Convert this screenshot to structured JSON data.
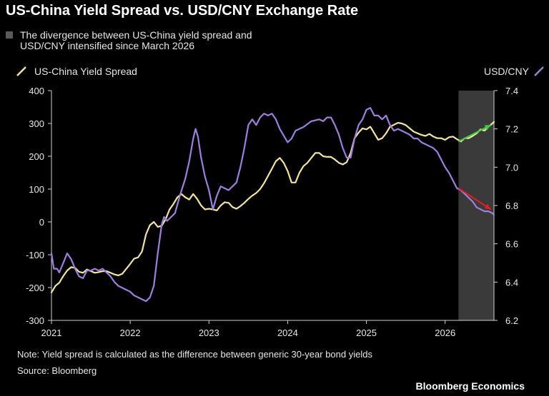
{
  "title": "US-China Yield Spread vs. USD/CNY Exchange Rate",
  "legend": {
    "shade_label": "The divergence between US-China yield spread and USD/CNY intensified since March 2026",
    "spread_label": "US-China Yield Spread",
    "usdcny_label": "USD/CNY"
  },
  "note": "Note: Yield spread is calculated as the difference between generic 30-year bond yields",
  "source": "Source: Bloomberg",
  "brand": "Bloomberg Economics",
  "colors": {
    "spread": "#f2e49a",
    "usdcny": "#a07ee0",
    "shade": "#3a3a3a",
    "arrow_up": "#3fcc44",
    "arrow_down": "#e02020"
  },
  "chart_data": {
    "type": "line",
    "x_ticks": [
      "2021",
      "2022",
      "2023",
      "2024",
      "2025",
      "2026"
    ],
    "x_range": [
      2021.0,
      2026.62
    ],
    "y_left": {
      "label": "",
      "ticks": [
        "400",
        "300",
        "200",
        "100",
        "0",
        "-100",
        "-200",
        "-300"
      ],
      "range": [
        -300,
        400
      ]
    },
    "y_right": {
      "label": "USD/CNY",
      "ticks": [
        "7.4",
        "7.2",
        "7.0",
        "6.8",
        "6.6",
        "6.4",
        "6.2"
      ],
      "range": [
        6.2,
        7.4
      ]
    },
    "shaded_region": [
      2026.17,
      2026.62
    ],
    "series": [
      {
        "name": "US-China Yield Spread",
        "axis": "left",
        "points": [
          [
            2021.0,
            -215
          ],
          [
            2021.05,
            -195
          ],
          [
            2021.1,
            -185
          ],
          [
            2021.15,
            -165
          ],
          [
            2021.2,
            -148
          ],
          [
            2021.25,
            -138
          ],
          [
            2021.3,
            -140
          ],
          [
            2021.35,
            -152
          ],
          [
            2021.4,
            -155
          ],
          [
            2021.45,
            -145
          ],
          [
            2021.5,
            -150
          ],
          [
            2021.55,
            -155
          ],
          [
            2021.6,
            -153
          ],
          [
            2021.65,
            -150
          ],
          [
            2021.7,
            -150
          ],
          [
            2021.75,
            -155
          ],
          [
            2021.8,
            -160
          ],
          [
            2021.85,
            -163
          ],
          [
            2021.9,
            -158
          ],
          [
            2021.95,
            -143
          ],
          [
            2022.0,
            -128
          ],
          [
            2022.05,
            -112
          ],
          [
            2022.1,
            -108
          ],
          [
            2022.15,
            -90
          ],
          [
            2022.2,
            -38
          ],
          [
            2022.25,
            -10
          ],
          [
            2022.3,
            0
          ],
          [
            2022.35,
            -15
          ],
          [
            2022.4,
            -12
          ],
          [
            2022.45,
            8
          ],
          [
            2022.5,
            38
          ],
          [
            2022.55,
            55
          ],
          [
            2022.6,
            75
          ],
          [
            2022.65,
            85
          ],
          [
            2022.7,
            75
          ],
          [
            2022.75,
            68
          ],
          [
            2022.8,
            85
          ],
          [
            2022.85,
            70
          ],
          [
            2022.9,
            50
          ],
          [
            2022.95,
            38
          ],
          [
            2023.0,
            40
          ],
          [
            2023.05,
            38
          ],
          [
            2023.1,
            35
          ],
          [
            2023.15,
            50
          ],
          [
            2023.2,
            60
          ],
          [
            2023.25,
            58
          ],
          [
            2023.3,
            45
          ],
          [
            2023.35,
            40
          ],
          [
            2023.4,
            48
          ],
          [
            2023.45,
            58
          ],
          [
            2023.5,
            70
          ],
          [
            2023.55,
            80
          ],
          [
            2023.6,
            88
          ],
          [
            2023.65,
            100
          ],
          [
            2023.7,
            118
          ],
          [
            2023.75,
            140
          ],
          [
            2023.8,
            162
          ],
          [
            2023.85,
            185
          ],
          [
            2023.9,
            195
          ],
          [
            2023.95,
            180
          ],
          [
            2024.0,
            155
          ],
          [
            2024.05,
            120
          ],
          [
            2024.1,
            120
          ],
          [
            2024.15,
            150
          ],
          [
            2024.2,
            170
          ],
          [
            2024.25,
            180
          ],
          [
            2024.3,
            195
          ],
          [
            2024.35,
            210
          ],
          [
            2024.4,
            210
          ],
          [
            2024.45,
            200
          ],
          [
            2024.5,
            198
          ],
          [
            2024.55,
            198
          ],
          [
            2024.6,
            190
          ],
          [
            2024.65,
            180
          ],
          [
            2024.7,
            175
          ],
          [
            2024.75,
            182
          ],
          [
            2024.8,
            210
          ],
          [
            2024.85,
            255
          ],
          [
            2024.9,
            272
          ],
          [
            2024.95,
            285
          ],
          [
            2025.0,
            282
          ],
          [
            2025.05,
            290
          ],
          [
            2025.1,
            270
          ],
          [
            2025.15,
            250
          ],
          [
            2025.2,
            255
          ],
          [
            2025.25,
            270
          ],
          [
            2025.3,
            290
          ],
          [
            2025.35,
            296
          ],
          [
            2025.4,
            302
          ],
          [
            2025.45,
            300
          ],
          [
            2025.5,
            295
          ],
          [
            2025.55,
            285
          ],
          [
            2025.6,
            275
          ],
          [
            2025.65,
            270
          ],
          [
            2025.7,
            265
          ],
          [
            2025.75,
            262
          ],
          [
            2025.8,
            268
          ],
          [
            2025.85,
            260
          ],
          [
            2025.9,
            255
          ],
          [
            2025.95,
            255
          ],
          [
            2026.0,
            250
          ],
          [
            2026.05,
            258
          ],
          [
            2026.1,
            260
          ],
          [
            2026.15,
            252
          ],
          [
            2026.2,
            245
          ],
          [
            2026.25,
            255
          ],
          [
            2026.3,
            255
          ],
          [
            2026.35,
            262
          ],
          [
            2026.4,
            270
          ],
          [
            2026.45,
            282
          ],
          [
            2026.5,
            278
          ],
          [
            2026.55,
            290
          ],
          [
            2026.6,
            300
          ],
          [
            2026.62,
            305
          ]
        ]
      },
      {
        "name": "USD/CNY",
        "axis": "right",
        "points": [
          [
            2021.0,
            6.55
          ],
          [
            2021.03,
            6.47
          ],
          [
            2021.07,
            6.47
          ],
          [
            2021.1,
            6.45
          ],
          [
            2021.15,
            6.5
          ],
          [
            2021.2,
            6.55
          ],
          [
            2021.25,
            6.52
          ],
          [
            2021.3,
            6.47
          ],
          [
            2021.35,
            6.43
          ],
          [
            2021.4,
            6.42
          ],
          [
            2021.45,
            6.46
          ],
          [
            2021.5,
            6.46
          ],
          [
            2021.55,
            6.47
          ],
          [
            2021.6,
            6.46
          ],
          [
            2021.65,
            6.47
          ],
          [
            2021.7,
            6.45
          ],
          [
            2021.75,
            6.43
          ],
          [
            2021.8,
            6.4
          ],
          [
            2021.85,
            6.38
          ],
          [
            2021.9,
            6.37
          ],
          [
            2021.95,
            6.36
          ],
          [
            2022.0,
            6.35
          ],
          [
            2022.05,
            6.33
          ],
          [
            2022.1,
            6.32
          ],
          [
            2022.15,
            6.31
          ],
          [
            2022.2,
            6.3
          ],
          [
            2022.25,
            6.32
          ],
          [
            2022.3,
            6.38
          ],
          [
            2022.35,
            6.55
          ],
          [
            2022.4,
            6.7
          ],
          [
            2022.43,
            6.74
          ],
          [
            2022.47,
            6.72
          ],
          [
            2022.52,
            6.74
          ],
          [
            2022.57,
            6.76
          ],
          [
            2022.63,
            6.85
          ],
          [
            2022.7,
            6.94
          ],
          [
            2022.75,
            7.03
          ],
          [
            2022.8,
            7.15
          ],
          [
            2022.83,
            7.2
          ],
          [
            2022.86,
            7.16
          ],
          [
            2022.9,
            7.05
          ],
          [
            2022.95,
            6.95
          ],
          [
            2023.0,
            6.88
          ],
          [
            2023.05,
            6.78
          ],
          [
            2023.1,
            6.85
          ],
          [
            2023.15,
            6.9
          ],
          [
            2023.2,
            6.89
          ],
          [
            2023.25,
            6.88
          ],
          [
            2023.3,
            6.9
          ],
          [
            2023.35,
            6.92
          ],
          [
            2023.4,
            7.0
          ],
          [
            2023.45,
            7.1
          ],
          [
            2023.5,
            7.22
          ],
          [
            2023.55,
            7.25
          ],
          [
            2023.6,
            7.22
          ],
          [
            2023.65,
            7.26
          ],
          [
            2023.7,
            7.28
          ],
          [
            2023.75,
            7.27
          ],
          [
            2023.8,
            7.28
          ],
          [
            2023.85,
            7.25
          ],
          [
            2023.9,
            7.2
          ],
          [
            2024.0,
            7.13
          ],
          [
            2024.05,
            7.15
          ],
          [
            2024.1,
            7.19
          ],
          [
            2024.2,
            7.21
          ],
          [
            2024.3,
            7.24
          ],
          [
            2024.4,
            7.25
          ],
          [
            2024.45,
            7.24
          ],
          [
            2024.5,
            7.26
          ],
          [
            2024.55,
            7.26
          ],
          [
            2024.6,
            7.22
          ],
          [
            2024.65,
            7.17
          ],
          [
            2024.7,
            7.1
          ],
          [
            2024.75,
            7.05
          ],
          [
            2024.8,
            7.05
          ],
          [
            2024.85,
            7.15
          ],
          [
            2024.9,
            7.22
          ],
          [
            2024.95,
            7.25
          ],
          [
            2025.0,
            7.3
          ],
          [
            2025.05,
            7.31
          ],
          [
            2025.1,
            7.27
          ],
          [
            2025.15,
            7.27
          ],
          [
            2025.2,
            7.25
          ],
          [
            2025.25,
            7.27
          ],
          [
            2025.3,
            7.22
          ],
          [
            2025.35,
            7.19
          ],
          [
            2025.4,
            7.2
          ],
          [
            2025.45,
            7.19
          ],
          [
            2025.5,
            7.18
          ],
          [
            2025.55,
            7.17
          ],
          [
            2025.6,
            7.15
          ],
          [
            2025.65,
            7.15
          ],
          [
            2025.7,
            7.13
          ],
          [
            2025.75,
            7.12
          ],
          [
            2025.8,
            7.11
          ],
          [
            2025.85,
            7.1
          ],
          [
            2025.9,
            7.08
          ],
          [
            2025.95,
            7.04
          ],
          [
            2026.0,
            7.0
          ],
          [
            2026.05,
            6.97
          ],
          [
            2026.1,
            6.93
          ],
          [
            2026.15,
            6.89
          ],
          [
            2026.2,
            6.88
          ],
          [
            2026.25,
            6.86
          ],
          [
            2026.3,
            6.84
          ],
          [
            2026.35,
            6.82
          ],
          [
            2026.4,
            6.79
          ],
          [
            2026.45,
            6.78
          ],
          [
            2026.5,
            6.77
          ],
          [
            2026.55,
            6.77
          ],
          [
            2026.6,
            6.76
          ],
          [
            2026.62,
            6.75
          ]
        ]
      }
    ],
    "annotations": [
      {
        "type": "arrow",
        "color": "up",
        "from": [
          2026.17,
          245
        ],
        "to": [
          2026.58,
          295
        ],
        "axis": "left"
      },
      {
        "type": "arrow",
        "color": "down",
        "from": [
          2026.17,
          6.89
        ],
        "to": [
          2026.58,
          6.78
        ],
        "axis": "right"
      }
    ]
  }
}
